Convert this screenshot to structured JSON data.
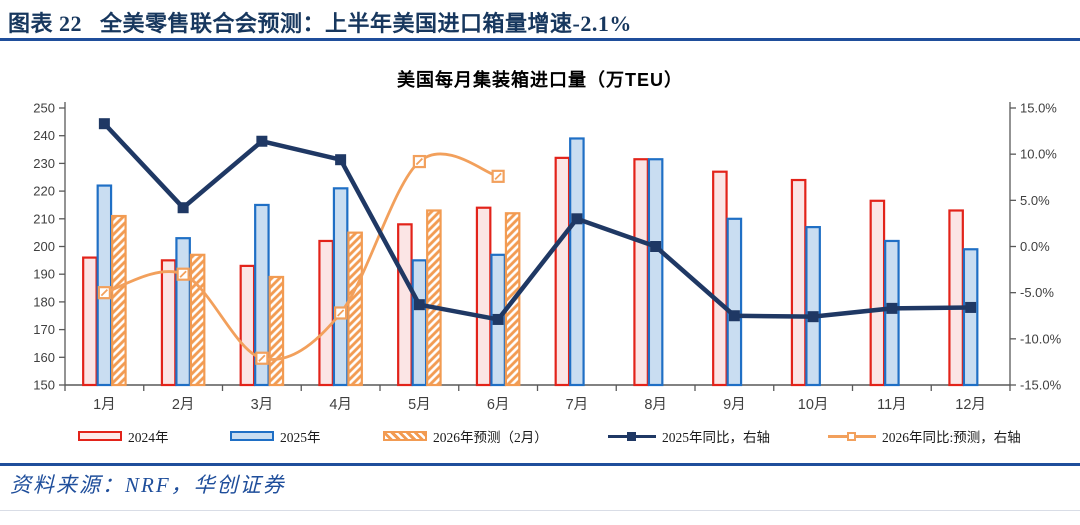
{
  "header": {
    "title": "图表 22   全美零售联合会预测：上半年美国进口箱量增速-2.1%"
  },
  "footer": {
    "source": "资料来源：NRF，华创证券"
  },
  "chart_data": {
    "type": "bar",
    "subtype": "grouped bars with two overlay lines on secondary axis",
    "title": "美国每月集装箱进口量（万TEU）",
    "categories": [
      "1月",
      "2月",
      "3月",
      "4月",
      "5月",
      "6月",
      "7月",
      "8月",
      "9月",
      "10月",
      "11月",
      "12月"
    ],
    "left_axis": {
      "min": 150,
      "max": 250,
      "ticks": [
        250,
        240,
        230,
        220,
        210,
        200,
        190,
        180,
        170,
        160,
        150
      ]
    },
    "right_axis": {
      "min": -15,
      "max": 15,
      "ticks": [
        15,
        10,
        5,
        0,
        -5,
        -10,
        -15
      ],
      "tick_labels": [
        "15.0%",
        "10.0%",
        "5.0%",
        "0.0%",
        "-5.0%",
        "-10.0%",
        "-15.0%"
      ]
    },
    "grid": false,
    "legend_position": "bottom",
    "series": [
      {
        "name": "2024年",
        "type": "bar",
        "axis": "left",
        "slot": 0,
        "stroke": "#e2231a",
        "fill": "#fbe5e5",
        "values": [
          196,
          195,
          193,
          202,
          208,
          214,
          232,
          231.5,
          227,
          224,
          216.5,
          213
        ]
      },
      {
        "name": "2025年",
        "type": "bar",
        "axis": "left",
        "slot": 1,
        "stroke": "#1f6fc5",
        "fill": "#c9ddf1",
        "values": [
          222,
          203,
          215,
          221,
          195,
          197,
          239,
          231.5,
          210,
          207,
          202,
          199
        ]
      },
      {
        "name": "2026年预测（2月）",
        "type": "bar",
        "axis": "left",
        "slot": 2,
        "stroke": "#f29b52",
        "fill": "hatch",
        "values": [
          211,
          197,
          189,
          205,
          213,
          212,
          null,
          null,
          null,
          null,
          null,
          null
        ]
      },
      {
        "name": "2025年同比，右轴",
        "type": "line",
        "axis": "right",
        "stroke": "#1f3864",
        "width": 4.5,
        "marker": "solid-square",
        "smooth": false,
        "values": [
          13.3,
          4.2,
          11.4,
          9.4,
          -6.3,
          -7.9,
          3.0,
          0.0,
          -7.5,
          -7.6,
          -6.7,
          -6.6
        ]
      },
      {
        "name": "2026年同比:预测，右轴",
        "type": "line",
        "axis": "right",
        "stroke": "#f2a05c",
        "width": 2.8,
        "marker": "hatched-square",
        "smooth": true,
        "values": [
          -5.0,
          -3.0,
          -12.1,
          -7.2,
          9.2,
          7.6,
          null,
          null,
          null,
          null,
          null,
          null
        ]
      }
    ],
    "colors": {
      "axis_line": "#595959",
      "tick_text": "#3f3f3f",
      "title_navy": "#17375e",
      "rule_blue": "#1f4e9b",
      "hatch_orange": "#f29b52"
    }
  }
}
